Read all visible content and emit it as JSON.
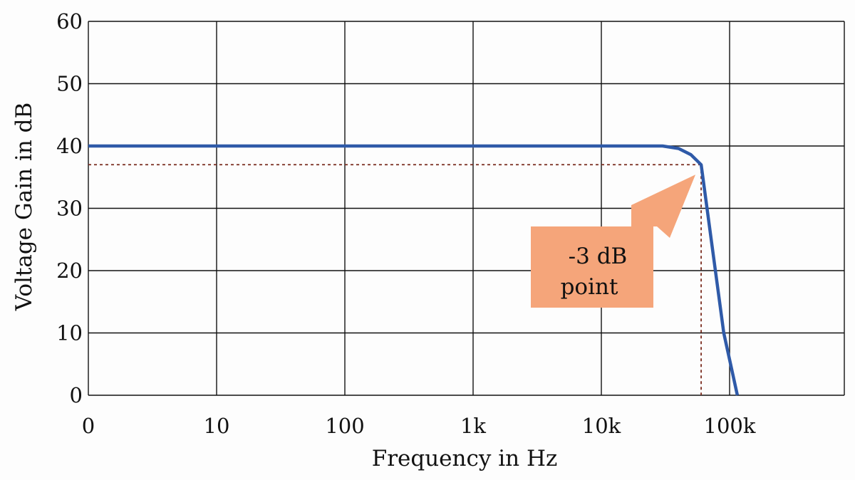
{
  "chart_data": {
    "type": "line",
    "xlabel": "Frequency in Hz",
    "ylabel": "Voltage Gain in dB",
    "x_tick_labels": [
      "0",
      "10",
      "100",
      "1k",
      "10k",
      "100k"
    ],
    "y_tick_labels": [
      "0",
      "10",
      "20",
      "30",
      "40",
      "50",
      "60"
    ],
    "ylim": [
      0,
      60
    ],
    "x_scale": "log",
    "grid": true,
    "series": [
      {
        "color": "#2f5aa8",
        "points": [
          {
            "x": 1,
            "y": 40
          },
          {
            "x": 10000,
            "y": 40
          },
          {
            "x": 30000,
            "y": 40
          },
          {
            "x": 40000,
            "y": 39.6
          },
          {
            "x": 50000,
            "y": 38.6
          },
          {
            "x": 60000,
            "y": 37
          },
          {
            "x": 90000,
            "y": 10
          },
          {
            "x": 115000,
            "y": 0
          }
        ]
      }
    ],
    "reference_point": {
      "x": 60000,
      "y": 37,
      "color": "#7a2b1e"
    },
    "annotation": {
      "lines": [
        "-3 dB",
        "point"
      ],
      "fill": "#f5a57a"
    }
  }
}
